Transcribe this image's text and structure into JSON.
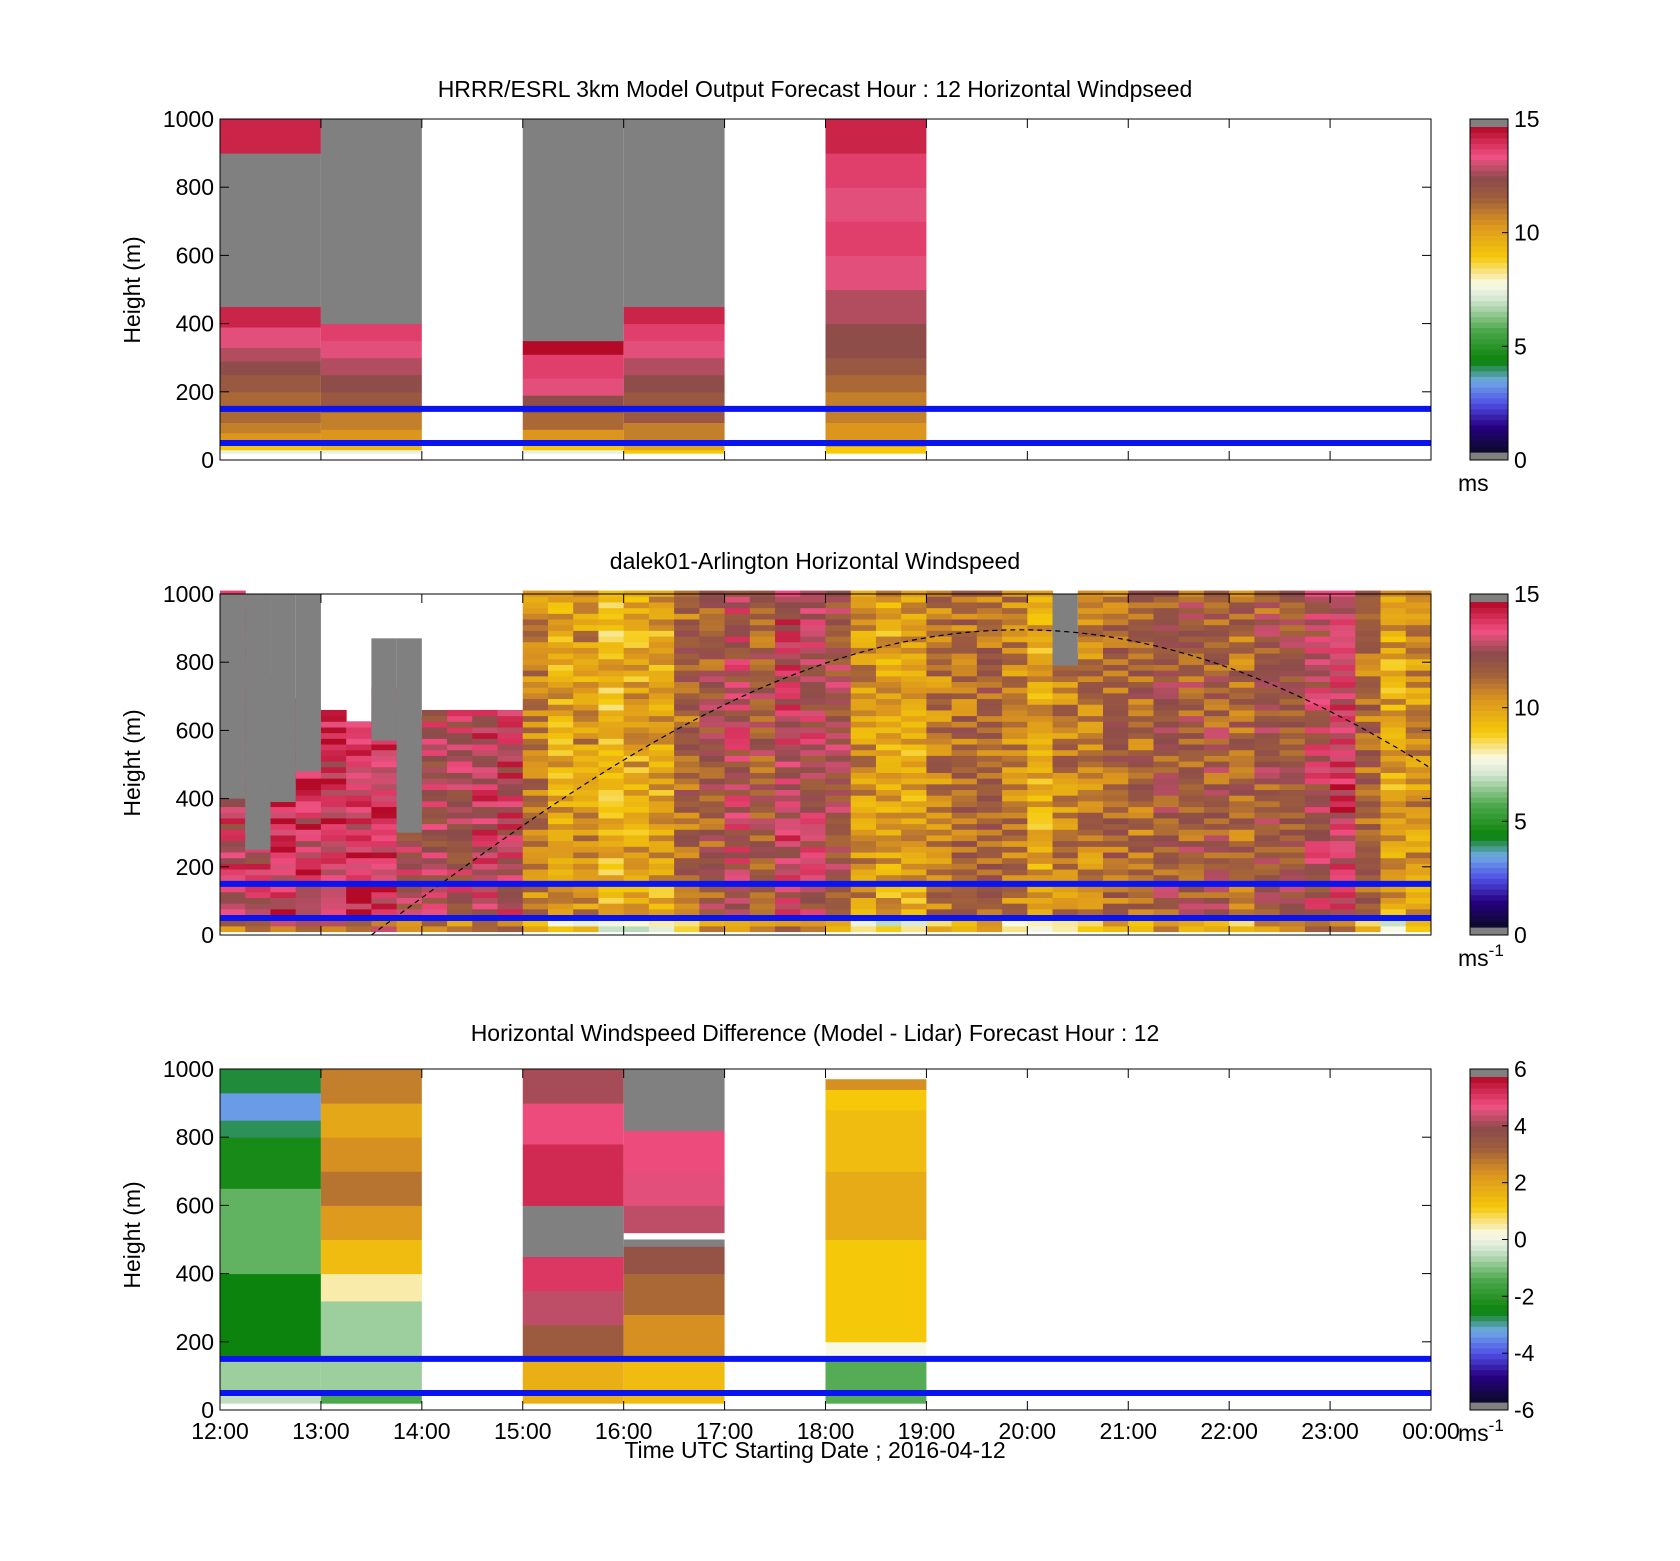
{
  "colors": {
    "background": "#ffffff",
    "reference_lines": "#0a14f0",
    "missing_data": "#808080",
    "daylight_curve": "#000000"
  },
  "chart_data": [
    {
      "type": "heatmap",
      "title": "HRRR/ESRL 3km Model Output   Forecast Hour : 12 Horizontal Windpseed",
      "ylabel": "Height (m)",
      "ylim": [
        0,
        1000
      ],
      "yticks": [
        "0",
        "200",
        "400",
        "600",
        "800",
        "1000"
      ],
      "xlim": [
        "12:00",
        "00:00"
      ],
      "colorbar": {
        "min": 0,
        "max": 15,
        "ticks": [
          "0",
          "5",
          "10",
          "15"
        ],
        "units_label": "ms",
        "units_sup": ""
      },
      "reference_lines_m": [
        50,
        150
      ],
      "columns": [
        {
          "start": "12:00",
          "end": "13:00",
          "layers": [
            {
              "z0": 20,
              "z1": 30,
              "v": 7.5
            },
            {
              "z0": 30,
              "z1": 50,
              "v": 9
            },
            {
              "z0": 50,
              "z1": 80,
              "v": 10.5
            },
            {
              "z0": 80,
              "z1": 110,
              "v": 11
            },
            {
              "z0": 110,
              "z1": 200,
              "v": 11.5
            },
            {
              "z0": 200,
              "z1": 250,
              "v": 12
            },
            {
              "z0": 250,
              "z1": 290,
              "v": 12.5
            },
            {
              "z0": 290,
              "z1": 330,
              "v": 13
            },
            {
              "z0": 330,
              "z1": 390,
              "v": 13.5
            },
            {
              "z0": 390,
              "z1": 450,
              "v": 14.5
            },
            {
              "z0": 450,
              "z1": 900,
              "v": null
            },
            {
              "z0": 900,
              "z1": 1000,
              "v": 14.5
            }
          ]
        },
        {
          "start": "13:00",
          "end": "14:00",
          "layers": [
            {
              "z0": 20,
              "z1": 30,
              "v": 7.5
            },
            {
              "z0": 30,
              "z1": 50,
              "v": 9.5
            },
            {
              "z0": 50,
              "z1": 90,
              "v": 10.5
            },
            {
              "z0": 90,
              "z1": 140,
              "v": 11
            },
            {
              "z0": 140,
              "z1": 200,
              "v": 12
            },
            {
              "z0": 200,
              "z1": 250,
              "v": 12.5
            },
            {
              "z0": 250,
              "z1": 300,
              "v": 13
            },
            {
              "z0": 300,
              "z1": 350,
              "v": 13.5
            },
            {
              "z0": 350,
              "z1": 400,
              "v": 14
            },
            {
              "z0": 400,
              "z1": 1000,
              "v": null
            }
          ]
        },
        {
          "start": "15:00",
          "end": "16:00",
          "layers": [
            {
              "z0": 20,
              "z1": 30,
              "v": 7.5
            },
            {
              "z0": 30,
              "z1": 50,
              "v": 9
            },
            {
              "z0": 50,
              "z1": 90,
              "v": 10.5
            },
            {
              "z0": 90,
              "z1": 140,
              "v": 11.5
            },
            {
              "z0": 140,
              "z1": 190,
              "v": 12.5
            },
            {
              "z0": 190,
              "z1": 240,
              "v": 13.5
            },
            {
              "z0": 240,
              "z1": 280,
              "v": 14
            },
            {
              "z0": 280,
              "z1": 310,
              "v": 14
            },
            {
              "z0": 310,
              "z1": 350,
              "v": 15
            },
            {
              "z0": 350,
              "z1": 1000,
              "v": null
            }
          ]
        },
        {
          "start": "16:00",
          "end": "17:00",
          "layers": [
            {
              "z0": 20,
              "z1": 30,
              "v": 9
            },
            {
              "z0": 30,
              "z1": 60,
              "v": 10
            },
            {
              "z0": 60,
              "z1": 110,
              "v": 11
            },
            {
              "z0": 110,
              "z1": 200,
              "v": 12
            },
            {
              "z0": 200,
              "z1": 250,
              "v": 12.5
            },
            {
              "z0": 250,
              "z1": 300,
              "v": 13
            },
            {
              "z0": 300,
              "z1": 350,
              "v": 13.5
            },
            {
              "z0": 350,
              "z1": 400,
              "v": 14
            },
            {
              "z0": 400,
              "z1": 450,
              "v": 14.5
            },
            {
              "z0": 450,
              "z1": 1000,
              "v": null
            }
          ]
        },
        {
          "start": "18:00",
          "end": "19:00",
          "layers": [
            {
              "z0": 20,
              "z1": 40,
              "v": 9
            },
            {
              "z0": 40,
              "z1": 110,
              "v": 10.5
            },
            {
              "z0": 110,
              "z1": 200,
              "v": 11
            },
            {
              "z0": 200,
              "z1": 250,
              "v": 11.5
            },
            {
              "z0": 250,
              "z1": 300,
              "v": 12
            },
            {
              "z0": 300,
              "z1": 400,
              "v": 12.5
            },
            {
              "z0": 400,
              "z1": 500,
              "v": 13
            },
            {
              "z0": 500,
              "z1": 600,
              "v": 13.5
            },
            {
              "z0": 600,
              "z1": 700,
              "v": 14
            },
            {
              "z0": 700,
              "z1": 800,
              "v": 13.5
            },
            {
              "z0": 800,
              "z1": 900,
              "v": 14
            },
            {
              "z0": 900,
              "z1": 1000,
              "v": 14.5
            }
          ]
        }
      ]
    },
    {
      "type": "heatmap",
      "title": "dalek01-Arlington  Horizontal Windspeed",
      "ylabel": "Height (m)",
      "ylim": [
        0,
        1000
      ],
      "yticks": [
        "0",
        "200",
        "400",
        "600",
        "800",
        "1000"
      ],
      "xlim": [
        "12:00",
        "00:00"
      ],
      "colorbar": {
        "min": 0,
        "max": 15,
        "ticks": [
          "0",
          "5",
          "10",
          "15"
        ],
        "units_label": "ms",
        "units_sup": "-1"
      },
      "reference_lines_m": [
        50,
        150
      ],
      "curve": {
        "shape": "dashed arc",
        "start": {
          "t": "13:30",
          "z": 0
        },
        "peak": {
          "t": "19:56",
          "z": 895
        },
        "end": {
          "t": "00:00",
          "z": 520
        }
      },
      "column_interval_minutes": 15,
      "column_base_speeds": [
        13.5,
        13.5,
        14,
        14,
        14,
        14,
        14,
        13,
        13,
        13,
        13.5,
        13.5,
        11,
        10,
        10.5,
        9.5,
        10,
        10,
        11.5,
        12,
        13,
        12,
        13.5,
        13,
        12.5,
        10.5,
        10,
        10,
        11,
        11.5,
        11.5,
        11,
        10,
        11,
        11,
        11.5,
        11.5,
        12,
        12,
        12,
        11.5,
        12,
        12,
        13,
        14,
        11.5,
        10,
        10.5
      ],
      "column_top_missing_m": [
        1000,
        750,
        690,
        660,
        650,
        620,
        720,
        640,
        650,
        650,
        650,
        650,
        1000,
        1000,
        1000,
        1000,
        1000,
        1000,
        1000,
        1000,
        1000,
        1000,
        1000,
        1000,
        1000,
        1000,
        1000,
        1000,
        1000,
        1000,
        1000,
        1000,
        1000,
        820,
        1000,
        1000,
        1000,
        1000,
        1000,
        1000,
        1000,
        1000,
        1000,
        1000,
        1000,
        1000,
        1000,
        1000
      ],
      "missing_regions": [
        {
          "start": "12:00",
          "end": "12:15",
          "z0": 400,
          "z1": 1000
        },
        {
          "start": "12:15",
          "end": "12:30",
          "z0": 250,
          "z1": 1000
        },
        {
          "start": "12:30",
          "end": "12:45",
          "z0": 390,
          "z1": 1000
        },
        {
          "start": "12:45",
          "end": "13:00",
          "z0": 480,
          "z1": 1000
        },
        {
          "start": "13:30",
          "end": "13:45",
          "z0": 570,
          "z1": 870
        },
        {
          "start": "13:45",
          "end": "14:00",
          "z0": 300,
          "z1": 870
        },
        {
          "start": "20:15",
          "end": "20:30",
          "z0": 790,
          "z1": 1000
        }
      ]
    },
    {
      "type": "heatmap",
      "title": "Horizontal Windspeed Difference (Model - Lidar) Forecast Hour : 12",
      "ylabel": "Height (m)",
      "xlabel": "Time UTC  Starting Date ; 2016-04-12",
      "ylim": [
        0,
        1000
      ],
      "yticks": [
        "0",
        "200",
        "400",
        "600",
        "800",
        "1000"
      ],
      "xticks": [
        "12:00",
        "13:00",
        "14:00",
        "15:00",
        "16:00",
        "17:00",
        "18:00",
        "19:00",
        "20:00",
        "21:00",
        "22:00",
        "23:00",
        "00:00"
      ],
      "colorbar": {
        "min": -6,
        "max": 6,
        "ticks": [
          "-6",
          "-4",
          "-2",
          "0",
          "2",
          "4",
          "6"
        ],
        "units_label": "ms",
        "units_sup": "-1"
      },
      "reference_lines_m": [
        50,
        150
      ],
      "columns": [
        {
          "start": "12:00",
          "end": "13:00",
          "layers": [
            {
              "z0": 20,
              "z1": 50,
              "v": -0.5
            },
            {
              "z0": 50,
              "z1": 160,
              "v": -0.8
            },
            {
              "z0": 160,
              "z1": 400,
              "v": -2.6
            },
            {
              "z0": 400,
              "z1": 650,
              "v": -1.3
            },
            {
              "z0": 650,
              "z1": 800,
              "v": -2.4
            },
            {
              "z0": 800,
              "z1": 850,
              "v": -2.9
            },
            {
              "z0": 850,
              "z1": 930,
              "v": -3.5
            },
            {
              "z0": 930,
              "z1": 1000,
              "v": -2.8
            }
          ]
        },
        {
          "start": "13:00",
          "end": "14:00",
          "layers": [
            {
              "z0": 20,
              "z1": 60,
              "v": -1.5
            },
            {
              "z0": 60,
              "z1": 320,
              "v": -0.8
            },
            {
              "z0": 320,
              "z1": 400,
              "v": 0.5
            },
            {
              "z0": 400,
              "z1": 500,
              "v": 1.5
            },
            {
              "z0": 500,
              "z1": 600,
              "v": 2.3
            },
            {
              "z0": 600,
              "z1": 700,
              "v": 3.0
            },
            {
              "z0": 700,
              "z1": 800,
              "v": 2.5
            },
            {
              "z0": 800,
              "z1": 900,
              "v": 2.0
            },
            {
              "z0": 900,
              "z1": 1000,
              "v": 2.8
            }
          ]
        },
        {
          "start": "15:00",
          "end": "16:00",
          "layers": [
            {
              "z0": 20,
              "z1": 160,
              "v": 1.8
            },
            {
              "z0": 160,
              "z1": 250,
              "v": 3.5
            },
            {
              "z0": 250,
              "z1": 350,
              "v": 4.5
            },
            {
              "z0": 350,
              "z1": 450,
              "v": 5.3
            },
            {
              "z0": 450,
              "z1": 600,
              "v": null
            },
            {
              "z0": 600,
              "z1": 780,
              "v": 5.5
            },
            {
              "z0": 780,
              "z1": 900,
              "v": 5.0
            },
            {
              "z0": 900,
              "z1": 1000,
              "v": 4.3
            }
          ]
        },
        {
          "start": "16:00",
          "end": "17:00",
          "layers": [
            {
              "z0": 20,
              "z1": 160,
              "v": 1.5
            },
            {
              "z0": 160,
              "z1": 280,
              "v": 2.5
            },
            {
              "z0": 280,
              "z1": 400,
              "v": 3.2
            },
            {
              "z0": 400,
              "z1": 480,
              "v": 3.8
            },
            {
              "z0": 480,
              "z1": 500,
              "v": null
            },
            {
              "z0": 520,
              "z1": 600,
              "v": 4.5
            },
            {
              "z0": 600,
              "z1": 700,
              "v": 4.8
            },
            {
              "z0": 700,
              "z1": 820,
              "v": 5.0
            },
            {
              "z0": 820,
              "z1": 1000,
              "v": null
            }
          ]
        },
        {
          "start": "18:00",
          "end": "19:00",
          "layers": [
            {
              "z0": 20,
              "z1": 150,
              "v": -1.4
            },
            {
              "z0": 150,
              "z1": 200,
              "v": 0.2
            },
            {
              "z0": 200,
              "z1": 500,
              "v": 1.2
            },
            {
              "z0": 500,
              "z1": 700,
              "v": 1.9
            },
            {
              "z0": 700,
              "z1": 880,
              "v": 1.5
            },
            {
              "z0": 880,
              "z1": 940,
              "v": 1.2
            },
            {
              "z0": 940,
              "z1": 970,
              "v": 2.5
            }
          ]
        }
      ]
    }
  ]
}
